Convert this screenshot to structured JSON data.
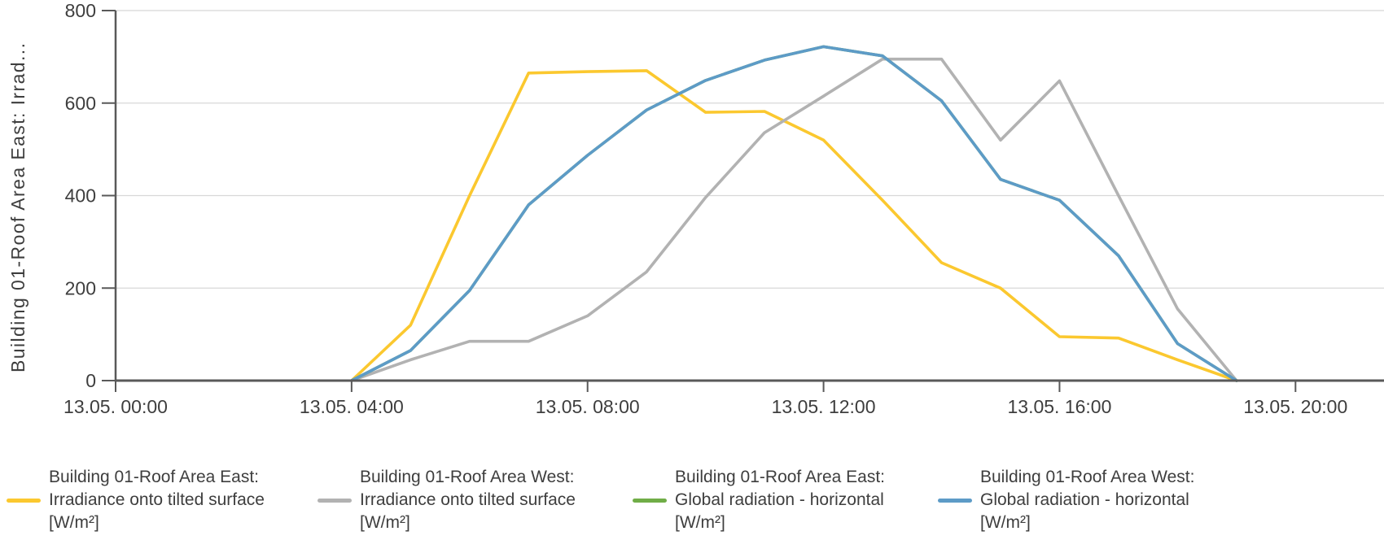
{
  "chart_data": {
    "type": "line",
    "title": "",
    "ylabel": "Building 01-Roof Area East: Irrad...",
    "xlabel": "",
    "ylim": [
      0,
      800
    ],
    "xlim_hours": [
      0,
      21.5
    ],
    "grid": "horizontal",
    "legend_position": "bottom",
    "y_ticks": [
      0,
      200,
      400,
      600,
      800
    ],
    "y_tick_labels": [
      "0",
      "200",
      "400",
      "600",
      "800"
    ],
    "x_ticks": [
      {
        "hour": 0,
        "label": "13.05. 00:00"
      },
      {
        "hour": 4,
        "label": "13.05. 04:00"
      },
      {
        "hour": 8,
        "label": "13.05. 08:00"
      },
      {
        "hour": 12,
        "label": "13.05. 12:00"
      },
      {
        "hour": 16,
        "label": "13.05. 16:00"
      },
      {
        "hour": 20,
        "label": "13.05. 20:00"
      }
    ],
    "x_hours": [
      0,
      1,
      2,
      3,
      4,
      5,
      6,
      7,
      8,
      9,
      10,
      11,
      12,
      13,
      14,
      15,
      16,
      17,
      18,
      19,
      20,
      21
    ],
    "series": [
      {
        "id": "east-tilted",
        "name": "Building 01-Roof Area East: Irradiance onto tilted surface [W/m²]",
        "legend_lines": [
          "Building 01-Roof Area East:",
          "Irradiance onto tilted surface",
          "[W/m²]"
        ],
        "color": "#fbc82f",
        "values": [
          0,
          0,
          0,
          0,
          0,
          120,
          400,
          665,
          668,
          670,
          580,
          582,
          520,
          390,
          255,
          200,
          95,
          92,
          45,
          0,
          0,
          0
        ]
      },
      {
        "id": "west-tilted",
        "name": "Building 01-Roof Area West: Irradiance onto tilted surface [W/m²]",
        "legend_lines": [
          "Building 01-Roof Area West:",
          "Irradiance onto tilted surface",
          "[W/m²]"
        ],
        "color": "#b2b2b2",
        "values": [
          0,
          0,
          0,
          0,
          0,
          45,
          85,
          85,
          140,
          235,
          396,
          536,
          615,
          695,
          695,
          520,
          648,
          400,
          155,
          0,
          0,
          0
        ]
      },
      {
        "id": "east-global",
        "name": "Building 01-Roof Area East: Global radiation - horizontal [W/m²]",
        "legend_lines": [
          "Building 01-Roof Area East:",
          "Global radiation - horizontal",
          "[W/m²]"
        ],
        "color": "#70ad47",
        "visibility_note": "coincides with the West global radiation curve and is hidden beneath it",
        "values": [
          0,
          0,
          0,
          0,
          0,
          65,
          195,
          380,
          487,
          585,
          649,
          693,
          722,
          702,
          605,
          435,
          390,
          270,
          80,
          0,
          0,
          0
        ]
      },
      {
        "id": "west-global",
        "name": "Building 01-Roof Area West: Global radiation - horizontal [W/m²]",
        "legend_lines": [
          "Building 01-Roof Area West:",
          "Global radiation - horizontal",
          "[W/m²]"
        ],
        "color": "#5d9bc7",
        "values": [
          0,
          0,
          0,
          0,
          0,
          65,
          195,
          380,
          487,
          585,
          649,
          693,
          722,
          702,
          605,
          435,
          390,
          270,
          80,
          0,
          0,
          0
        ]
      }
    ],
    "colors": {
      "grid": "#d8d8d8",
      "axis": "#595959",
      "text": "#3e3e3e",
      "background": "#ffffff"
    }
  }
}
